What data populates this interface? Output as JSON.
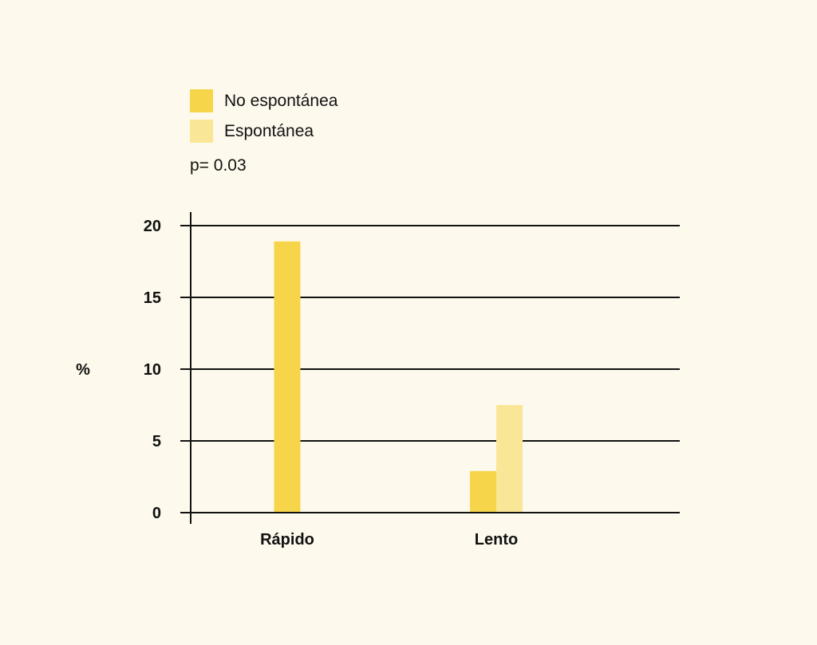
{
  "chart_data": {
    "type": "bar",
    "title": "",
    "xlabel": "",
    "ylabel": "%",
    "categories": [
      "Rápido",
      "Lento"
    ],
    "series": [
      {
        "name": "No espontánea",
        "values": [
          18.9,
          2.9
        ],
        "color": "#f7d54b"
      },
      {
        "name": "Espontánea",
        "values": [
          null,
          7.5
        ],
        "color": "#fae697"
      }
    ],
    "ylim": [
      0,
      20
    ],
    "yticks": [
      0,
      5,
      10,
      15,
      20
    ],
    "grid": true,
    "legend_placement": "top-left",
    "annotation": "p= 0.03"
  },
  "colors": {
    "background": "#fdf9ec",
    "axis": "#111111"
  }
}
